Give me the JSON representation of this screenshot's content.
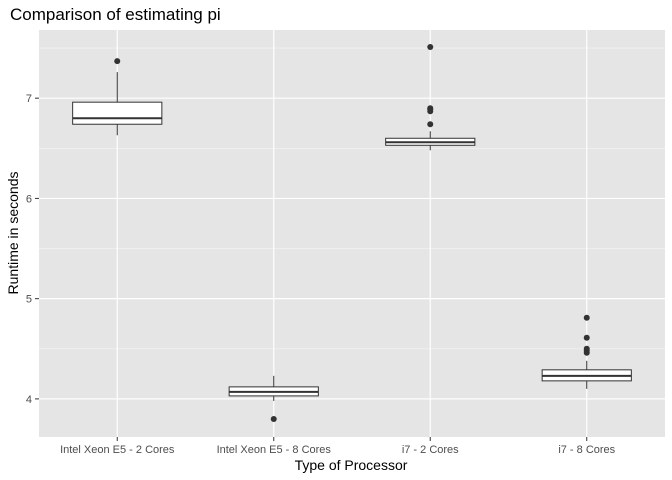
{
  "chart_data": {
    "type": "boxplot",
    "title": "Comparison of estimating pi",
    "xlabel": "Type of Processor",
    "ylabel": "Runtime in seconds",
    "ylim": [
      3.62,
      7.68
    ],
    "yticks": [
      4,
      5,
      6,
      7
    ],
    "grid": true,
    "legend": "none",
    "colors": {
      "panel": "#e5e5e5",
      "grid_major": "#ffffff",
      "box_fill": "#ffffff",
      "box_stroke": "#333333",
      "outlier": "#333333",
      "tick_label": "#4d4d4d"
    },
    "categories": [
      "Intel Xeon E5 - 2 Cores",
      "Intel Xeon E5 - 8 Cores",
      "i7 - 2 Cores",
      "i7 - 8 Cores"
    ],
    "boxes": [
      {
        "category": "Intel Xeon E5 - 2 Cores",
        "whisker_low": 6.63,
        "q1": 6.74,
        "median": 6.8,
        "q3": 6.96,
        "whisker_high": 7.26,
        "outliers": [
          7.37
        ]
      },
      {
        "category": "Intel Xeon E5 - 8 Cores",
        "whisker_low": 3.98,
        "q1": 4.03,
        "median": 4.07,
        "q3": 4.12,
        "whisker_high": 4.23,
        "outliers": [
          3.8
        ]
      },
      {
        "category": "i7 - 2 Cores",
        "whisker_low": 6.48,
        "q1": 6.53,
        "median": 6.56,
        "q3": 6.6,
        "whisker_high": 6.67,
        "outliers": [
          6.74,
          6.87,
          6.89,
          6.9,
          7.51
        ]
      },
      {
        "category": "i7 - 8 Cores",
        "whisker_low": 4.1,
        "q1": 4.18,
        "median": 4.23,
        "q3": 4.29,
        "whisker_high": 4.38,
        "outliers": [
          4.46,
          4.48,
          4.5,
          4.61,
          4.81
        ]
      }
    ]
  }
}
